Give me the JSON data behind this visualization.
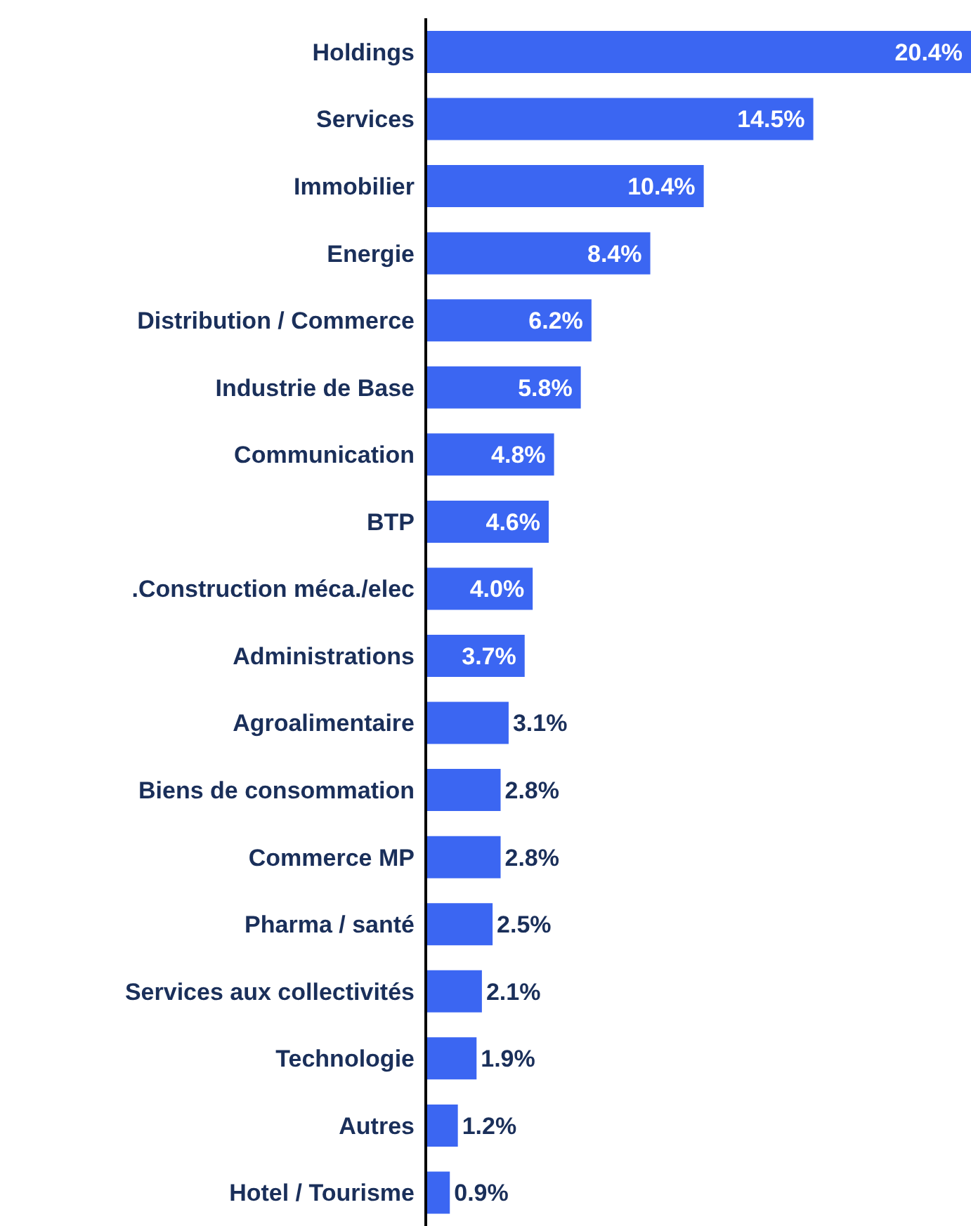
{
  "chart_data": {
    "type": "bar",
    "orientation": "horizontal",
    "categories": [
      "Holdings",
      "Services",
      "Immobilier",
      "Energie",
      "Distribution / Commerce",
      "Industrie de Base",
      "Communication",
      "BTP",
      ".Construction méca./elec",
      "Administrations",
      "Agroalimentaire",
      "Biens de consommation",
      "Commerce MP",
      "Pharma / santé",
      "Services aux collectivités",
      "Technologie",
      "Autres",
      "Hotel / Tourisme"
    ],
    "values": [
      20.4,
      14.5,
      10.4,
      8.4,
      6.2,
      5.8,
      4.8,
      4.6,
      4.0,
      3.7,
      3.1,
      2.8,
      2.8,
      2.5,
      2.1,
      1.9,
      1.2,
      0.9
    ],
    "value_labels": [
      "20.4%",
      "14.5%",
      "10.4%",
      "8.4%",
      "6.2%",
      "5.8%",
      "4.8%",
      "4.6%",
      "4.0%",
      "3.7%",
      "3.1%",
      "2.8%",
      "2.8%",
      "2.5%",
      "2.1%",
      "1.9%",
      "1.2%",
      "0.9%"
    ],
    "color": "#3b66f2",
    "grid": false,
    "legend": false
  }
}
